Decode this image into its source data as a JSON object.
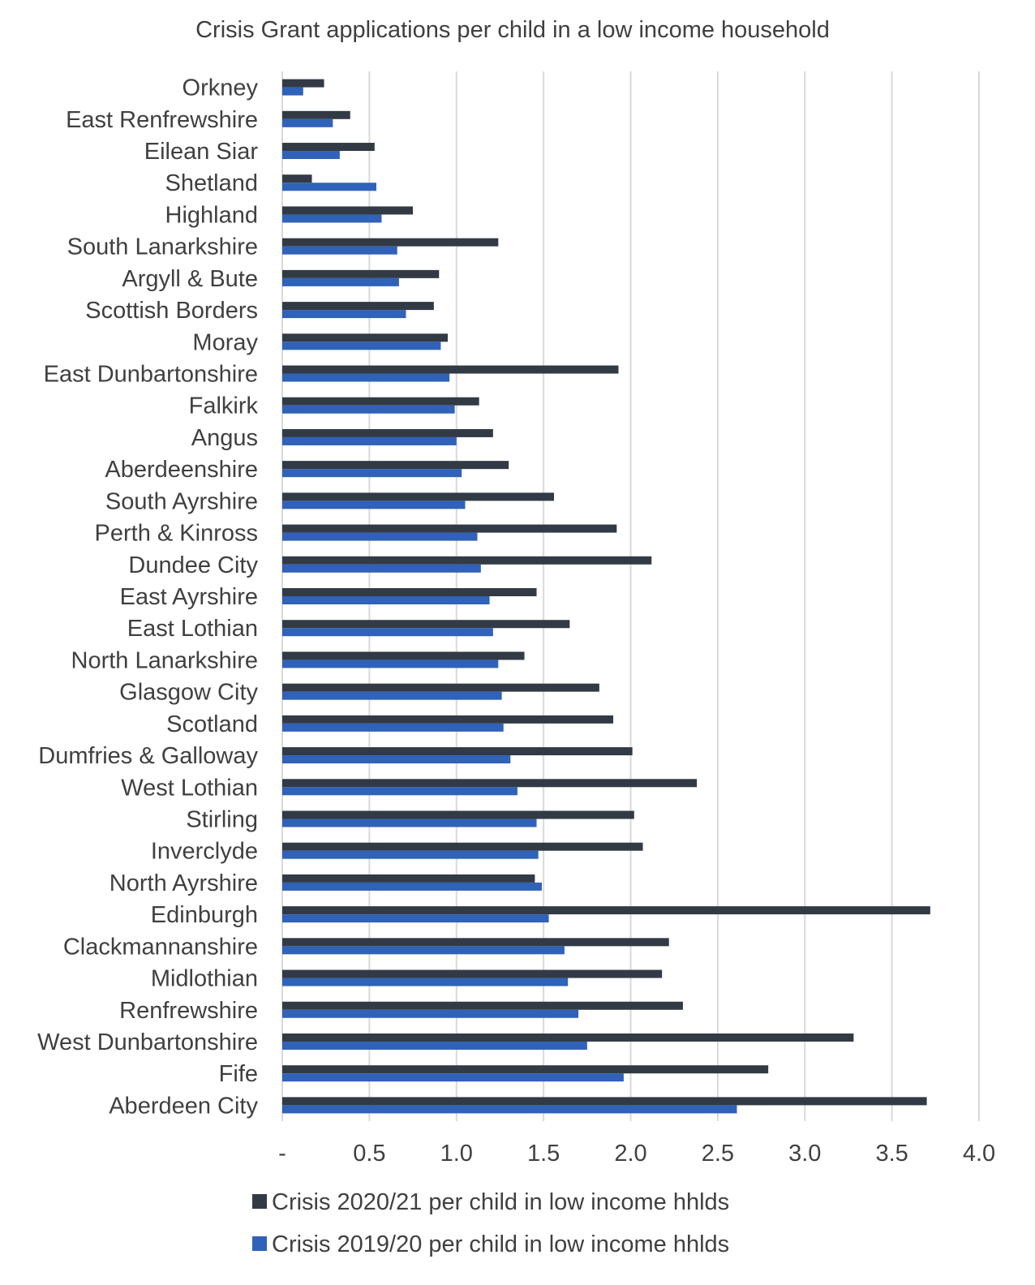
{
  "chart_data": {
    "type": "bar",
    "orientation": "horizontal",
    "title": "Crisis Grant applications per child in a low income household",
    "xlabel": "",
    "ylabel": "",
    "xlim": [
      0,
      4.0
    ],
    "ticks": [
      {
        "value": 0,
        "label": "-"
      },
      {
        "value": 0.5,
        "label": "0.5"
      },
      {
        "value": 1.0,
        "label": "1.0"
      },
      {
        "value": 1.5,
        "label": "1.5"
      },
      {
        "value": 2.0,
        "label": "2.0"
      },
      {
        "value": 2.5,
        "label": "2.5"
      },
      {
        "value": 3.0,
        "label": "3.0"
      },
      {
        "value": 3.5,
        "label": "3.5"
      },
      {
        "value": 4.0,
        "label": "4.0"
      }
    ],
    "grid": true,
    "legend_position": "bottom",
    "categories": [
      "Orkney",
      "East Renfrewshire",
      "Eilean Siar",
      "Shetland",
      "Highland",
      "South Lanarkshire",
      "Argyll & Bute",
      "Scottish Borders",
      "Moray",
      "East Dunbartonshire",
      "Falkirk",
      "Angus",
      "Aberdeenshire",
      "South Ayrshire",
      "Perth & Kinross",
      "Dundee City",
      "East Ayrshire",
      "East Lothian",
      "North Lanarkshire",
      "Glasgow City",
      "Scotland",
      "Dumfries & Galloway",
      "West Lothian",
      "Stirling",
      "Inverclyde",
      "North Ayrshire",
      "Edinburgh",
      "Clackmannanshire",
      "Midlothian",
      "Renfrewshire",
      "West Dunbartonshire",
      "Fife",
      "Aberdeen City"
    ],
    "series": [
      {
        "name": "Crisis 2020/21 per child in low income hhlds",
        "color": "#323a45",
        "values": [
          0.24,
          0.39,
          0.53,
          0.17,
          0.75,
          1.24,
          0.9,
          0.87,
          0.95,
          1.93,
          1.13,
          1.21,
          1.3,
          1.56,
          1.92,
          2.12,
          1.46,
          1.65,
          1.39,
          1.82,
          1.9,
          2.01,
          2.38,
          2.02,
          2.07,
          1.45,
          3.72,
          2.22,
          2.18,
          2.3,
          3.28,
          2.79,
          3.7
        ]
      },
      {
        "name": "Crisis 2019/20 per child in low income hhlds",
        "color": "#2f62b8",
        "values": [
          0.12,
          0.29,
          0.33,
          0.54,
          0.57,
          0.66,
          0.67,
          0.71,
          0.91,
          0.96,
          0.99,
          1.0,
          1.03,
          1.05,
          1.12,
          1.14,
          1.19,
          1.21,
          1.24,
          1.26,
          1.27,
          1.31,
          1.35,
          1.46,
          1.47,
          1.49,
          1.53,
          1.62,
          1.64,
          1.7,
          1.75,
          1.96,
          2.61
        ]
      }
    ]
  }
}
